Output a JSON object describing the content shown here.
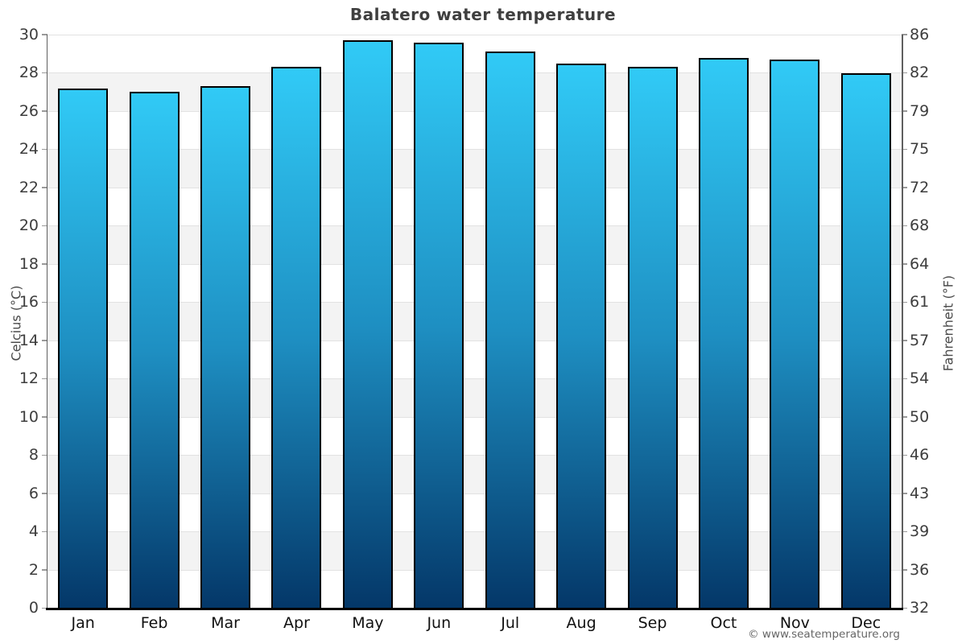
{
  "title": "Balatero water temperature",
  "axes": {
    "left_title": "Celcius (°C)",
    "right_title": "Fahrenheit (°F)",
    "left_ticks": [
      "30",
      "28",
      "26",
      "24",
      "22",
      "20",
      "18",
      "16",
      "14",
      "12",
      "10",
      "8",
      "6",
      "4",
      "2",
      "0"
    ],
    "right_ticks": [
      "86",
      "82",
      "79",
      "75",
      "72",
      "68",
      "64",
      "61",
      "57",
      "54",
      "50",
      "46",
      "43",
      "39",
      "36",
      "32"
    ]
  },
  "chart_data": {
    "type": "bar",
    "title": "Balatero water temperature",
    "categories": [
      "Jan",
      "Feb",
      "Mar",
      "Apr",
      "May",
      "Jun",
      "Jul",
      "Aug",
      "Sep",
      "Oct",
      "Nov",
      "Dec"
    ],
    "values": [
      27.2,
      27.0,
      27.3,
      28.3,
      29.7,
      29.6,
      29.1,
      28.5,
      28.3,
      28.8,
      28.7,
      28.0
    ],
    "xlabel": "",
    "ylabel": "Celcius (°C)",
    "y2label": "Fahrenheit (°F)",
    "ylim": [
      0,
      30
    ],
    "y2lim": [
      32,
      86
    ],
    "ytick_step": 2,
    "grid": "banded-horizontal",
    "legend": "none"
  },
  "footer": {
    "copyright": "© www.seatemperature.org"
  },
  "colors": {
    "bar_gradient_top": "#31caf6",
    "bar_gradient_mid": "#1e8fc2",
    "bar_gradient_bottom": "#043768",
    "bar_border": "#000000",
    "band_fill": "#f3f3f3",
    "gridline": "#e2e2e2",
    "axis_line": "#5f5f5f",
    "tick_mark": "#999999",
    "baseline": "#000000",
    "title_color": "#3f3f3f",
    "tick_label_color": "#3d3d3d",
    "axis_title_color": "#4a4a4a",
    "copyright_color": "#666666"
  }
}
